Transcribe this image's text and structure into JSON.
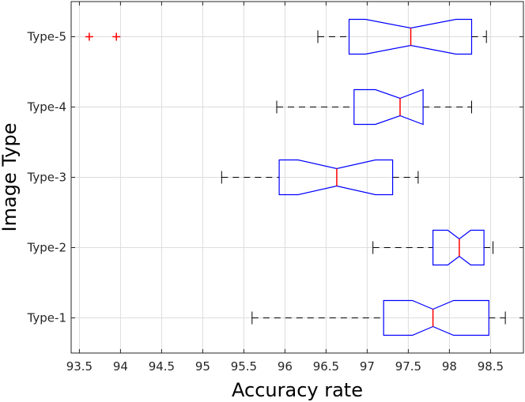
{
  "chart_data": {
    "type": "boxplot",
    "orientation": "horizontal",
    "notched": true,
    "xlabel": "Accuracy rate",
    "ylabel": "Image Type",
    "xlim": [
      93.4,
      98.9
    ],
    "xticks": [
      "93.5",
      "94",
      "94.5",
      "95",
      "95.5",
      "96",
      "96.5",
      "97",
      "97.5",
      "98",
      "98.5"
    ],
    "grid": true,
    "categories": [
      "Type-1",
      "Type-2",
      "Type-3",
      "Type-4",
      "Type-5"
    ],
    "series": [
      {
        "category": "Type-1",
        "whisker_low": 95.6,
        "q1": 97.2,
        "median": 97.8,
        "q3": 98.48,
        "whisker_high": 98.68,
        "notch_low": 97.55,
        "notch_high": 98.05,
        "outliers": []
      },
      {
        "category": "Type-2",
        "whisker_low": 97.07,
        "q1": 97.8,
        "median": 98.12,
        "q3": 98.42,
        "whisker_high": 98.53,
        "notch_low": 97.98,
        "notch_high": 98.26,
        "outliers": []
      },
      {
        "category": "Type-3",
        "whisker_low": 95.23,
        "q1": 95.93,
        "median": 96.63,
        "q3": 97.31,
        "whisker_high": 97.62,
        "notch_low": 96.16,
        "notch_high": 97.1,
        "outliers": []
      },
      {
        "category": "Type-4",
        "whisker_low": 95.9,
        "q1": 96.84,
        "median": 97.4,
        "q3": 97.68,
        "whisker_high": 98.27,
        "notch_low": 97.1,
        "notch_high": 97.68,
        "outliers": []
      },
      {
        "category": "Type-5",
        "whisker_low": 96.4,
        "q1": 96.78,
        "median": 97.53,
        "q3": 98.27,
        "whisker_high": 98.45,
        "notch_low": 96.98,
        "notch_high": 98.08,
        "outliers": [
          93.62,
          93.95
        ]
      }
    ],
    "colors": {
      "box": "#0000ff",
      "median": "#ff0000",
      "outlier": "#ff0000",
      "whisker": "#000000",
      "grid": "#dcdcdc"
    }
  }
}
